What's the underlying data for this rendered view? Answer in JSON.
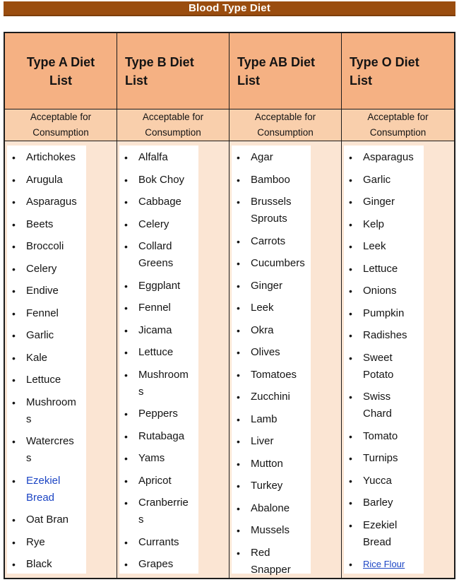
{
  "page_title": "Blood Type Diet",
  "colors": {
    "banner_bg": "#9a4d0f",
    "banner_edge": "#7c3d08",
    "header_bg": "#f5b183",
    "subheader_bg": "#f9cfac",
    "column_bg": "#fbe5d3",
    "box_bg": "#ffffff",
    "border": "#1c1c1c",
    "link": "#1c45c4"
  },
  "table": {
    "columns": [
      {
        "header": "Type A Diet\nList",
        "subheader": "Acceptable for\nConsumption",
        "items": [
          "Artichokes",
          "Arugula",
          "Asparagus",
          "Beets",
          "Broccoli",
          "Celery",
          "Endive",
          "Fennel",
          "Garlic",
          "Kale",
          "Lettuce",
          "Mushroom\ns",
          "Watercres\ns",
          {
            "text": "Ezekiel\nBread",
            "link": true
          },
          "Oat Bran",
          "Rye",
          "Black"
        ]
      },
      {
        "header": "Type B Diet\nList",
        "subheader": "Acceptable for\nConsumption",
        "items": [
          "Alfalfa",
          "Bok Choy",
          "Cabbage",
          "Celery",
          "Collard\nGreens",
          "Eggplant",
          "Fennel",
          "Jicama",
          "Lettuce",
          "Mushroom\ns",
          "Peppers",
          "Rutabaga",
          "Yams",
          "Apricot",
          "Cranberrie\ns",
          "Currants",
          "Grapes"
        ]
      },
      {
        "header": "Type AB Diet\nList",
        "subheader": "Acceptable for\nConsumption",
        "items": [
          "Agar",
          "Bamboo",
          "Brussels\nSprouts",
          "Carrots",
          "Cucumbers",
          "Ginger",
          "Leek",
          "Okra",
          "Olives",
          "Tomatoes",
          "Zucchini",
          "Lamb",
          "Liver",
          "Mutton",
          "Turkey",
          "Abalone",
          "Mussels",
          "Red\nSnapper"
        ]
      },
      {
        "header": "Type O Diet\nList",
        "subheader": "Acceptable for\nConsumption",
        "items": [
          "Asparagus",
          "Garlic",
          "Ginger",
          "Kelp",
          "Leek",
          "Lettuce",
          "Onions",
          "Pumpkin",
          "Radishes",
          "Sweet\nPotato",
          "Swiss\nChard",
          "Tomato",
          "Turnips",
          "Yucca",
          "Barley",
          "Ezekiel\nBread",
          {
            "text": "Rice Flour",
            "link": true,
            "underline": true,
            "small": true
          }
        ]
      }
    ]
  }
}
